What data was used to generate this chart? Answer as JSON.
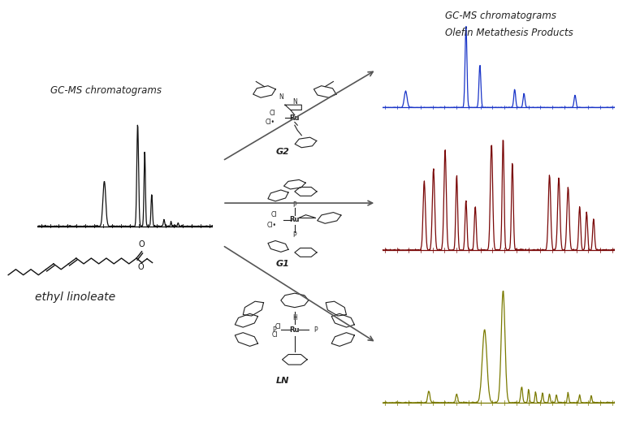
{
  "bg_color": "#ffffff",
  "left_label": "GC-MS chromatograms",
  "bottom_label": "ethyl linoleate",
  "right_label_line1": "GC-MS chromatograms",
  "right_label_line2": "Olefin Metathesis Products",
  "black_color": "#111111",
  "blue_color": "#1a35c8",
  "darkred_color": "#7a0808",
  "olive_color": "#7a7a00",
  "arrow_color": "#555555",
  "label_G2": "G2",
  "label_G1": "G1",
  "label_LN": "LN"
}
